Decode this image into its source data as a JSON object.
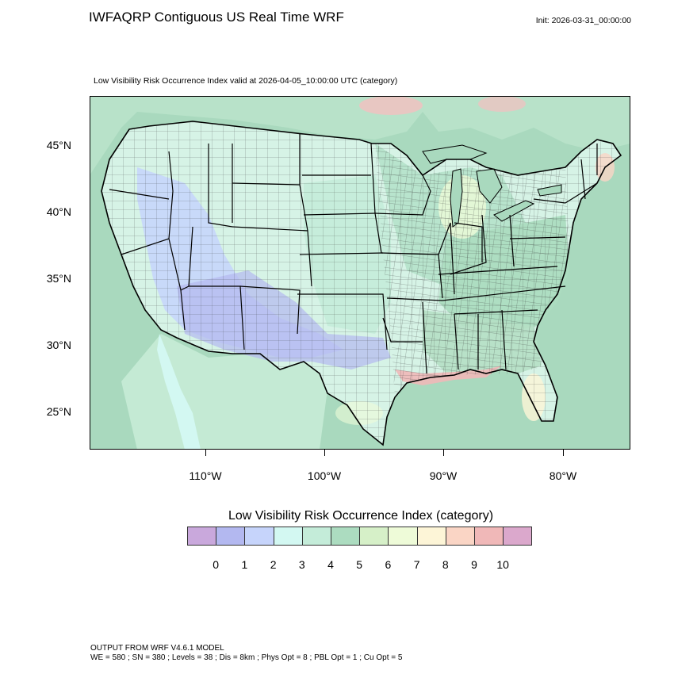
{
  "header": {
    "title": "IWFAQRP Contiguous US Real Time WRF",
    "init": "Init: 2026-03-31_00:00:00",
    "subtitle": "Low Visibility Risk Occurrence Index valid at 2026-04-05_10:00:00 UTC   (category)"
  },
  "map": {
    "lat_labels": [
      "45°N",
      "40°N",
      "35°N",
      "30°N",
      "25°N"
    ],
    "lon_labels": [
      "110°W",
      "100°W",
      "90°W",
      "80°W"
    ],
    "colors": {
      "land_base": "#d8f2e4",
      "ocean": "#a9d9be",
      "boundary": "#000000",
      "county": "#333333"
    }
  },
  "colorbar": {
    "title": "Low Visibility Risk Occurrence Index  (category)",
    "labels": [
      "0",
      "1",
      "2",
      "3",
      "4",
      "5",
      "6",
      "7",
      "8",
      "9",
      "10"
    ],
    "colors": [
      "#c9a8dc",
      "#b3b8f0",
      "#c6d4fb",
      "#d3f8f2",
      "#c4ecd9",
      "#acdcc0",
      "#d6f0c8",
      "#eefbd8",
      "#fdf5d7",
      "#fad5c5",
      "#f0b8b8",
      "#dba8cc"
    ]
  },
  "footer": {
    "line1": "OUTPUT FROM WRF V4.6.1 MODEL",
    "line2": "WE = 580 ; SN = 380 ; Levels = 38 ; Dis = 8km ; Phys Opt = 8 ; PBL Opt = 1 ; Cu Opt = 5"
  }
}
